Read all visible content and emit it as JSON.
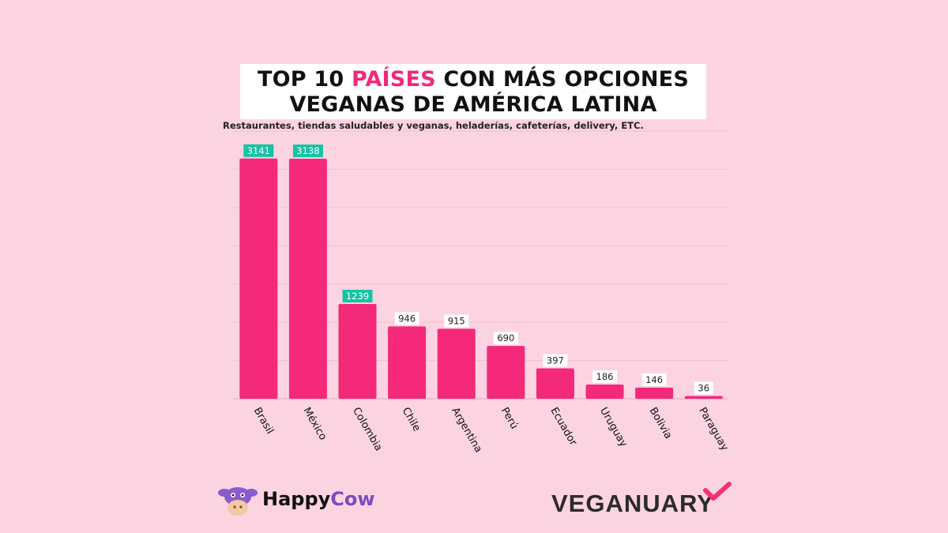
{
  "title": {
    "line1_prefix": "TOP 10 ",
    "line1_accent": "PAÍSES",
    "line1_suffix": " CON MÁS OPCIONES",
    "line2": "VEGANAS DE AMÉRICA LATINA"
  },
  "subtitle": "Restaurantes, tiendas saludables y veganas, heladerías, cafeterías, delivery, ETC.",
  "colors": {
    "background": "#fcd3e1",
    "bar": "#f4297a",
    "highlight_label": "#17c3a3",
    "accent_text": "#ee2a7b"
  },
  "chart_data": {
    "type": "bar",
    "categories": [
      "Brasil",
      "México",
      "Colombia",
      "Chile",
      "Argentina",
      "Perú",
      "Ecuador",
      "Uruguay",
      "Bolivia",
      "Paraguay"
    ],
    "values": [
      3141,
      3138,
      1239,
      946,
      915,
      690,
      397,
      186,
      146,
      36
    ],
    "highlighted": [
      true,
      true,
      true,
      false,
      false,
      false,
      false,
      false,
      false,
      false
    ],
    "ylim": [
      0,
      3500
    ],
    "grid": true,
    "xlabel": "",
    "ylabel": ""
  },
  "logos": {
    "happycow_happy": "Happy",
    "happycow_cow": "Cow",
    "veganuary": "VEGANUARY"
  }
}
